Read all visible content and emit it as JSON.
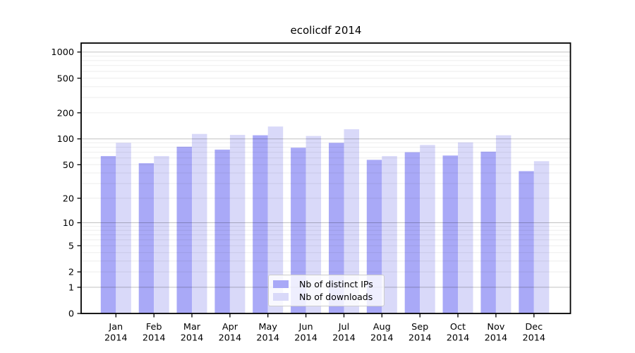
{
  "chart_data": {
    "type": "bar",
    "title": "ecolicdf 2014",
    "categories": [
      "Jan 2014",
      "Feb 2014",
      "Mar 2014",
      "Apr 2014",
      "May 2014",
      "Jun 2014",
      "Jul 2014",
      "Aug 2014",
      "Sep 2014",
      "Oct 2014",
      "Nov 2014",
      "Dec 2014"
    ],
    "series": [
      {
        "name": "Nb of distinct IPs",
        "color": "#a9a9f7",
        "values": [
          63,
          52,
          81,
          75,
          110,
          79,
          90,
          57,
          70,
          64,
          71,
          42
        ]
      },
      {
        "name": "Nb of downloads",
        "color": "#d9d9f9",
        "values": [
          90,
          63,
          114,
          111,
          139,
          108,
          129,
          63,
          85,
          91,
          110,
          55
        ]
      }
    ],
    "xlabel": "",
    "ylabel": "",
    "y_axis": {
      "scale": "log10(1+y)",
      "ticks": [
        0,
        1,
        2,
        5,
        10,
        20,
        50,
        100,
        200,
        500,
        1000
      ],
      "range": [
        0,
        1250
      ]
    },
    "grid": {
      "horizontal": true,
      "major_at": [
        1,
        10,
        100,
        1000
      ],
      "minor": "2-9 per decade"
    },
    "legend_position": "lower center"
  }
}
